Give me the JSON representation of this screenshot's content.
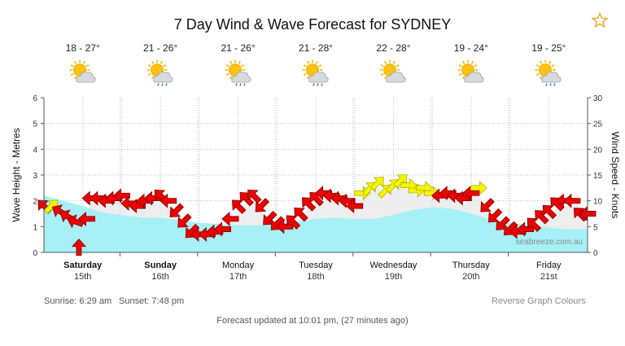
{
  "header": {
    "title": "7 Day Wind & Wave Forecast for SYDNEY",
    "favorite_icon": "star-outline-icon"
  },
  "days": [
    {
      "temp": "18 - 27°",
      "icon": "sun-cloud-icon",
      "day": "Saturday",
      "date": "15th",
      "bold": true
    },
    {
      "temp": "21 - 26°",
      "icon": "sun-cloud-rain-icon",
      "day": "Sunday",
      "date": "16th",
      "bold": true
    },
    {
      "temp": "21 - 26°",
      "icon": "sun-cloud-rain-icon",
      "day": "Monday",
      "date": "17th",
      "bold": false
    },
    {
      "temp": "21 - 28°",
      "icon": "sun-cloud-rain-icon",
      "day": "Tuesday",
      "date": "18th",
      "bold": false
    },
    {
      "temp": "22 - 28°",
      "icon": "sun-cloud-icon",
      "day": "Wednesday",
      "date": "19th",
      "bold": false
    },
    {
      "temp": "19 - 24°",
      "icon": "sun-cloud-icon",
      "day": "Thursday",
      "date": "20th",
      "bold": false
    },
    {
      "temp": "19 - 25°",
      "icon": "sun-cloud-rain-icon",
      "day": "Friday",
      "date": "21st",
      "bold": false
    }
  ],
  "chart_data": {
    "type": "area",
    "y_left": {
      "label": "Wave Height - Metres",
      "range": [
        0,
        6
      ],
      "ticks": [
        "0",
        "1",
        "2",
        "3",
        "4",
        "5",
        "6"
      ]
    },
    "y_right": {
      "label": "Wind Speed - Knots",
      "range": [
        0,
        30
      ],
      "ticks": [
        "0",
        "5",
        "10",
        "15",
        "20",
        "25",
        "30"
      ]
    },
    "x_days": 7,
    "grid": true,
    "watermark": "seabreeze.com.au",
    "colors": {
      "wave": "#a6f0f6",
      "swell": "#e8e8e8",
      "arrow_strong": "#ee0000",
      "arrow_light": "#f4f400"
    },
    "wave_height_m": [
      {
        "day": 0.0,
        "value": 2.2
      },
      {
        "day": 0.25,
        "value": 2.0
      },
      {
        "day": 0.5,
        "value": 1.8
      },
      {
        "day": 0.75,
        "value": 1.55
      },
      {
        "day": 1.0,
        "value": 1.45
      },
      {
        "day": 1.25,
        "value": 1.35
      },
      {
        "day": 1.5,
        "value": 1.35
      },
      {
        "day": 1.75,
        "value": 1.25
      },
      {
        "day": 2.0,
        "value": 1.15
      },
      {
        "day": 2.25,
        "value": 1.1
      },
      {
        "day": 2.5,
        "value": 1.05
      },
      {
        "day": 2.75,
        "value": 1.05
      },
      {
        "day": 3.0,
        "value": 1.1
      },
      {
        "day": 3.25,
        "value": 1.2
      },
      {
        "day": 3.5,
        "value": 1.3
      },
      {
        "day": 3.75,
        "value": 1.35
      },
      {
        "day": 4.0,
        "value": 1.3
      },
      {
        "day": 4.25,
        "value": 1.3
      },
      {
        "day": 4.5,
        "value": 1.45
      },
      {
        "day": 4.75,
        "value": 1.65
      },
      {
        "day": 5.0,
        "value": 1.75
      },
      {
        "day": 5.25,
        "value": 1.7
      },
      {
        "day": 5.5,
        "value": 1.5
      },
      {
        "day": 5.75,
        "value": 1.3
      },
      {
        "day": 6.0,
        "value": 1.15
      },
      {
        "day": 6.25,
        "value": 1.05
      },
      {
        "day": 6.5,
        "value": 0.95
      },
      {
        "day": 6.75,
        "value": 0.9
      },
      {
        "day": 7.0,
        "value": 0.9
      }
    ],
    "wind_speed_kn": [
      {
        "day": 0.0,
        "value": 9.0,
        "dir": 315
      },
      {
        "day": 0.1,
        "value": 9.0,
        "dir": 45
      },
      {
        "day": 0.2,
        "value": 8.0,
        "dir": 300
      },
      {
        "day": 0.3,
        "value": 7.0,
        "dir": 300
      },
      {
        "day": 0.4,
        "value": 6.0,
        "dir": 290
      },
      {
        "day": 0.45,
        "value": 1.0,
        "dir": 0
      },
      {
        "day": 0.55,
        "value": 6.5,
        "dir": 270
      },
      {
        "day": 0.6,
        "value": 10.5,
        "dir": 270
      },
      {
        "day": 0.7,
        "value": 10.5,
        "dir": 270
      },
      {
        "day": 0.8,
        "value": 10.0,
        "dir": 270
      },
      {
        "day": 0.9,
        "value": 10.5,
        "dir": 270
      },
      {
        "day": 1.0,
        "value": 11.0,
        "dir": 270
      },
      {
        "day": 1.1,
        "value": 9.5,
        "dir": 270
      },
      {
        "day": 1.2,
        "value": 9.0,
        "dir": 270
      },
      {
        "day": 1.3,
        "value": 10.0,
        "dir": 270
      },
      {
        "day": 1.4,
        "value": 10.5,
        "dir": 270
      },
      {
        "day": 1.5,
        "value": 11.0,
        "dir": 315
      },
      {
        "day": 1.6,
        "value": 10.0,
        "dir": 270
      },
      {
        "day": 1.7,
        "value": 8.0,
        "dir": 225
      },
      {
        "day": 1.8,
        "value": 6.0,
        "dir": 225
      },
      {
        "day": 1.9,
        "value": 4.0,
        "dir": 225
      },
      {
        "day": 2.0,
        "value": 3.5,
        "dir": 270
      },
      {
        "day": 2.1,
        "value": 3.5,
        "dir": 270
      },
      {
        "day": 2.2,
        "value": 4.0,
        "dir": 270
      },
      {
        "day": 2.3,
        "value": 4.5,
        "dir": 270
      },
      {
        "day": 2.4,
        "value": 6.5,
        "dir": 270
      },
      {
        "day": 2.5,
        "value": 9.0,
        "dir": 315
      },
      {
        "day": 2.6,
        "value": 10.5,
        "dir": 315
      },
      {
        "day": 2.7,
        "value": 11.0,
        "dir": 315
      },
      {
        "day": 2.8,
        "value": 9.0,
        "dir": 225
      },
      {
        "day": 2.9,
        "value": 6.5,
        "dir": 225
      },
      {
        "day": 3.0,
        "value": 5.5,
        "dir": 225
      },
      {
        "day": 3.1,
        "value": 5.0,
        "dir": 270
      },
      {
        "day": 3.2,
        "value": 6.0,
        "dir": 315
      },
      {
        "day": 3.3,
        "value": 7.5,
        "dir": 315
      },
      {
        "day": 3.4,
        "value": 9.5,
        "dir": 315
      },
      {
        "day": 3.5,
        "value": 10.5,
        "dir": 315
      },
      {
        "day": 3.6,
        "value": 11.5,
        "dir": 270
      },
      {
        "day": 3.7,
        "value": 11.0,
        "dir": 270
      },
      {
        "day": 3.8,
        "value": 10.5,
        "dir": 270
      },
      {
        "day": 3.9,
        "value": 10.0,
        "dir": 270
      },
      {
        "day": 4.0,
        "value": 9.0,
        "dir": 270
      },
      {
        "day": 4.1,
        "value": 11.5,
        "dir": 90
      },
      {
        "day": 4.2,
        "value": 12.5,
        "dir": 45
      },
      {
        "day": 4.3,
        "value": 13.5,
        "dir": 45
      },
      {
        "day": 4.4,
        "value": 12.0,
        "dir": 45
      },
      {
        "day": 4.5,
        "value": 13.0,
        "dir": 45
      },
      {
        "day": 4.6,
        "value": 14.0,
        "dir": 45
      },
      {
        "day": 4.7,
        "value": 13.0,
        "dir": 90
      },
      {
        "day": 4.8,
        "value": 12.0,
        "dir": 90
      },
      {
        "day": 4.9,
        "value": 12.5,
        "dir": 90
      },
      {
        "day": 5.0,
        "value": 11.5,
        "dir": 90
      },
      {
        "day": 5.1,
        "value": 11.0,
        "dir": 270
      },
      {
        "day": 5.2,
        "value": 11.5,
        "dir": 270
      },
      {
        "day": 5.3,
        "value": 11.0,
        "dir": 270
      },
      {
        "day": 5.4,
        "value": 10.5,
        "dir": 270
      },
      {
        "day": 5.5,
        "value": 11.5,
        "dir": 270
      },
      {
        "day": 5.6,
        "value": 12.5,
        "dir": 90
      },
      {
        "day": 5.7,
        "value": 9.0,
        "dir": 225
      },
      {
        "day": 5.8,
        "value": 7.0,
        "dir": 225
      },
      {
        "day": 5.9,
        "value": 5.5,
        "dir": 225
      },
      {
        "day": 6.0,
        "value": 4.5,
        "dir": 225
      },
      {
        "day": 6.1,
        "value": 4.0,
        "dir": 270
      },
      {
        "day": 6.2,
        "value": 4.5,
        "dir": 270
      },
      {
        "day": 6.3,
        "value": 5.5,
        "dir": 315
      },
      {
        "day": 6.4,
        "value": 7.0,
        "dir": 315
      },
      {
        "day": 6.5,
        "value": 8.0,
        "dir": 315
      },
      {
        "day": 6.6,
        "value": 9.5,
        "dir": 315
      },
      {
        "day": 6.7,
        "value": 10.0,
        "dir": 270
      },
      {
        "day": 6.8,
        "value": 10.0,
        "dir": 270
      },
      {
        "day": 6.9,
        "value": 7.5,
        "dir": 315
      },
      {
        "day": 7.0,
        "value": 7.5,
        "dir": 270
      }
    ]
  },
  "footer": {
    "sunrise": "Sunrise: 6:29 am",
    "sunset": "Sunset: 7:48 pm",
    "reverse_link": "Reverse Graph Colours",
    "updated": "Forecast updated at 10:01 pm, (27 minutes ago)"
  }
}
